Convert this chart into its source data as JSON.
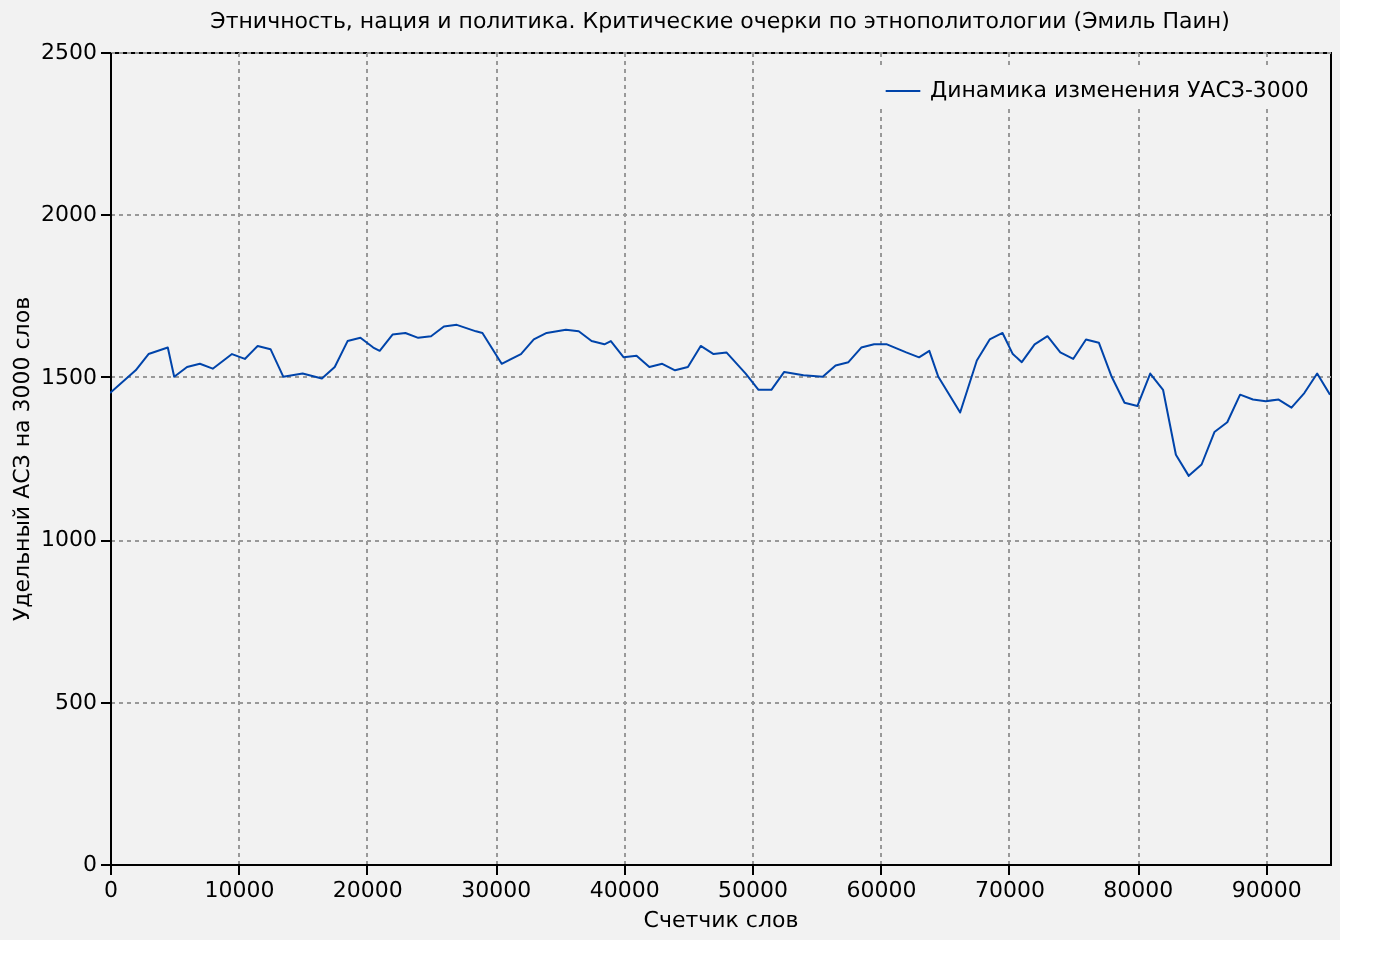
{
  "chart_data": {
    "type": "line",
    "title": "Этничность, нация и политика. Критические очерки по этнополитологии (Эмиль Паин)",
    "xlabel": "Счетчик слов",
    "ylabel": "Удельный АСЗ на 3000 слов",
    "x": [
      0,
      2000,
      3000,
      4500,
      5000,
      6000,
      7000,
      8000,
      9500,
      10500,
      11500,
      12500,
      13500,
      15000,
      16500,
      17500,
      18500,
      19500,
      20500,
      21000,
      22000,
      23000,
      24000,
      25000,
      26000,
      27000,
      28500,
      29000,
      30500,
      32000,
      33000,
      34000,
      35500,
      36500,
      37500,
      38500,
      39000,
      40000,
      41000,
      42000,
      43000,
      44000,
      45000,
      46000,
      47000,
      48000,
      49500,
      50500,
      51500,
      52500,
      54000,
      55500,
      56500,
      57500,
      58500,
      59500,
      60500,
      62000,
      63000,
      63800,
      64500,
      66200,
      67500,
      68500,
      69500,
      70300,
      71000,
      72000,
      73000,
      74000,
      75000,
      76000,
      77000,
      78000,
      79000,
      80000,
      81000,
      82000,
      83000,
      84000,
      85000,
      86000,
      87000,
      88000,
      89000,
      90000,
      91000,
      92000,
      93000,
      94000,
      95000
    ],
    "series": [
      {
        "name": "Динамика изменения УАСЗ-3000",
        "color": "#0044aa",
        "values": [
          1450,
          1520,
          1570,
          1590,
          1500,
          1530,
          1540,
          1525,
          1570,
          1555,
          1595,
          1585,
          1500,
          1510,
          1495,
          1530,
          1610,
          1620,
          1590,
          1580,
          1630,
          1635,
          1620,
          1625,
          1655,
          1660,
          1640,
          1635,
          1540,
          1570,
          1615,
          1635,
          1645,
          1640,
          1610,
          1600,
          1610,
          1560,
          1565,
          1530,
          1540,
          1520,
          1530,
          1595,
          1570,
          1575,
          1510,
          1460,
          1460,
          1515,
          1505,
          1500,
          1535,
          1545,
          1590,
          1600,
          1600,
          1575,
          1560,
          1580,
          1500,
          1390,
          1550,
          1615,
          1635,
          1570,
          1545,
          1600,
          1625,
          1575,
          1555,
          1615,
          1605,
          1500,
          1420,
          1410,
          1510,
          1460,
          1260,
          1195,
          1230,
          1330,
          1360,
          1445,
          1430,
          1425,
          1430,
          1405,
          1450,
          1510,
          1445
        ]
      }
    ],
    "xlim": [
      0,
      95000
    ],
    "xticks": [
      0,
      10000,
      20000,
      30000,
      40000,
      50000,
      60000,
      70000,
      80000,
      90000
    ],
    "ylim": [
      0,
      2500
    ],
    "yticks": [
      0,
      500,
      1000,
      1500,
      2000,
      2500
    ],
    "grid": true,
    "legend": "top right",
    "line_style": "solid",
    "marker": "none"
  }
}
